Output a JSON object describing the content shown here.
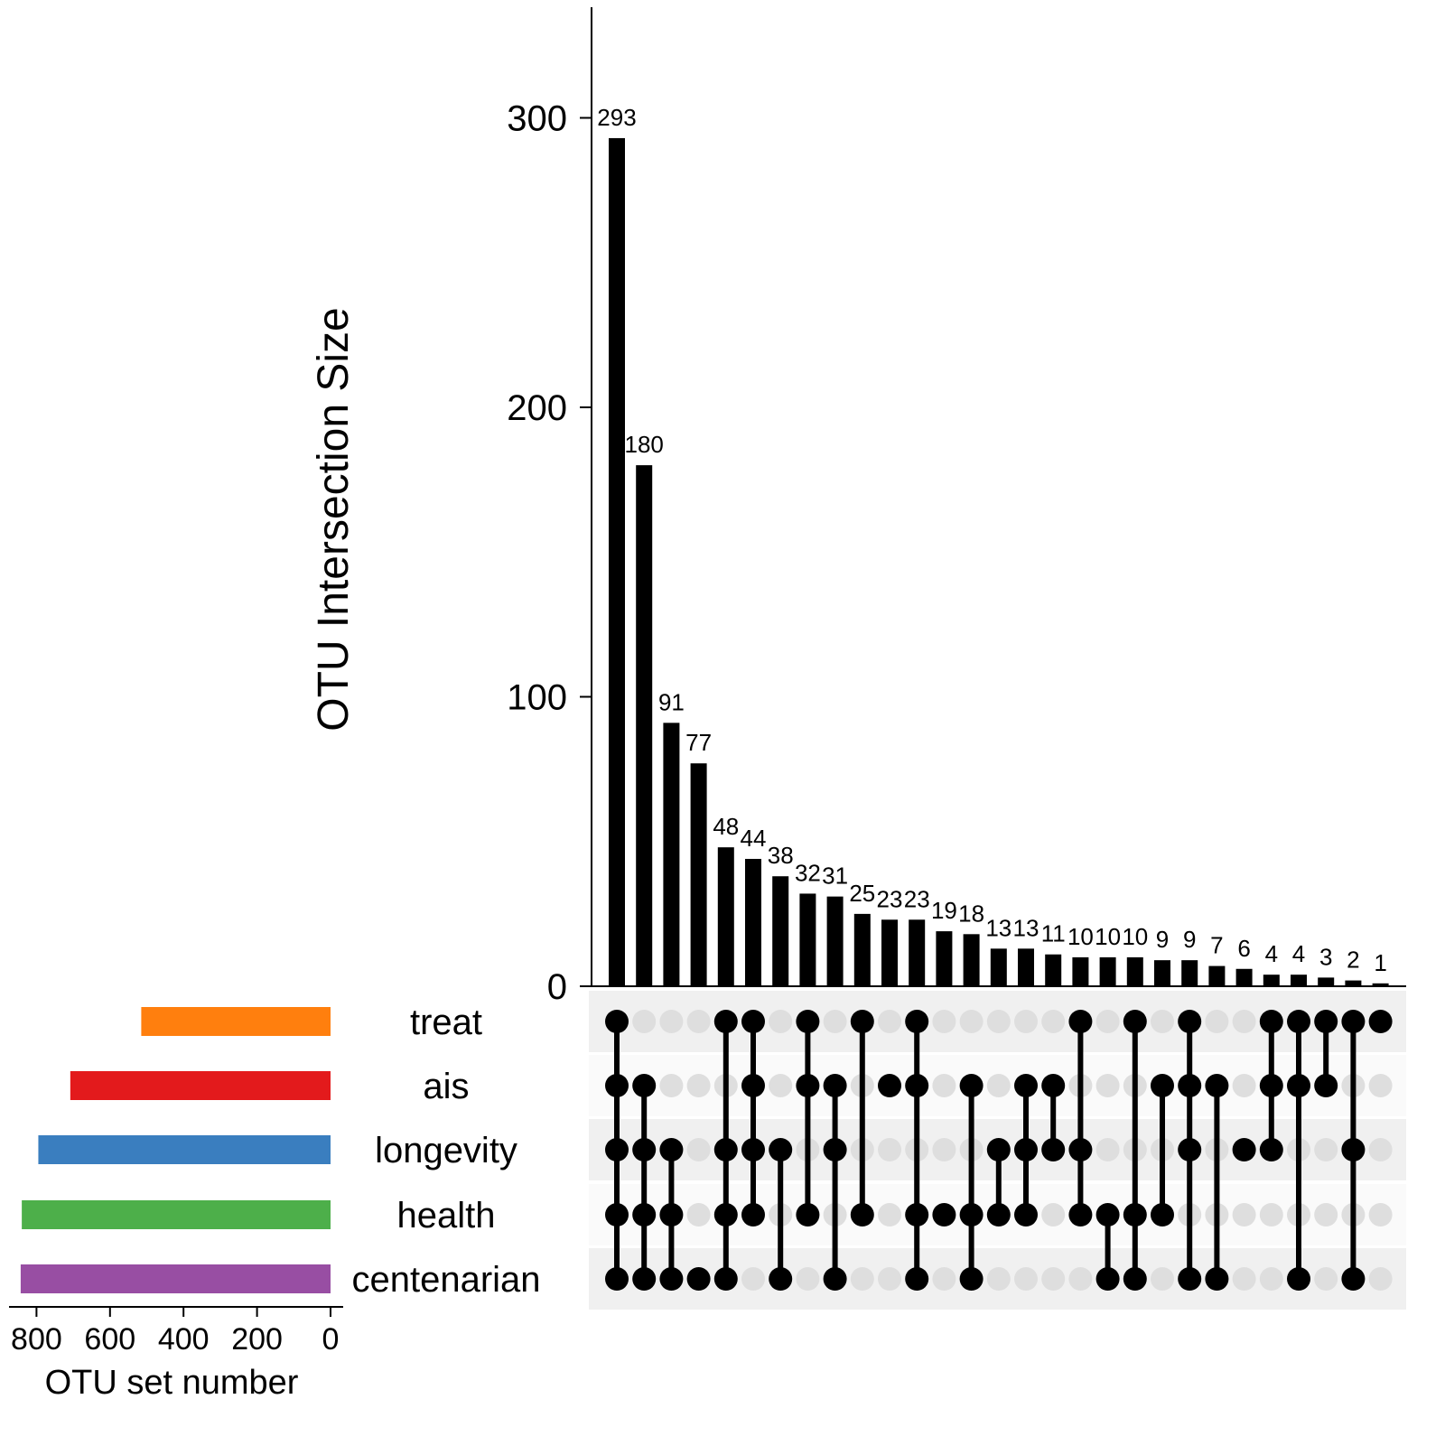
{
  "chart_data": {
    "type": "bar",
    "subtype": "upset",
    "ylabel": "OTU Intersection Size",
    "ylim": [
      0,
      330
    ],
    "yticks": [
      "0",
      "100",
      "200",
      "300"
    ],
    "intersections": [
      {
        "size": 293,
        "label": "293",
        "sets": [
          "treat",
          "ais",
          "longevity",
          "health",
          "centenarian"
        ]
      },
      {
        "size": 180,
        "label": "180",
        "sets": [
          "ais",
          "longevity",
          "health",
          "centenarian"
        ]
      },
      {
        "size": 91,
        "label": "91",
        "sets": [
          "longevity",
          "health",
          "centenarian"
        ]
      },
      {
        "size": 77,
        "label": "77",
        "sets": [
          "centenarian"
        ]
      },
      {
        "size": 48,
        "label": "48",
        "sets": [
          "treat",
          "longevity",
          "health",
          "centenarian"
        ]
      },
      {
        "size": 44,
        "label": "44",
        "sets": [
          "treat",
          "ais",
          "longevity",
          "health"
        ]
      },
      {
        "size": 38,
        "label": "38",
        "sets": [
          "longevity",
          "centenarian"
        ]
      },
      {
        "size": 32,
        "label": "32",
        "sets": [
          "treat",
          "ais",
          "health"
        ]
      },
      {
        "size": 31,
        "label": "31",
        "sets": [
          "ais",
          "longevity",
          "centenarian"
        ]
      },
      {
        "size": 25,
        "label": "25",
        "sets": [
          "treat",
          "health"
        ]
      },
      {
        "size": 23,
        "label": "23",
        "sets": [
          "ais"
        ]
      },
      {
        "size": 23,
        "label": "23",
        "sets": [
          "treat",
          "ais",
          "health",
          "centenarian"
        ]
      },
      {
        "size": 19,
        "label": "19",
        "sets": [
          "health"
        ]
      },
      {
        "size": 18,
        "label": "18",
        "sets": [
          "ais",
          "health",
          "centenarian"
        ]
      },
      {
        "size": 13,
        "label": "13",
        "sets": [
          "longevity",
          "health"
        ]
      },
      {
        "size": 13,
        "label": "13",
        "sets": [
          "ais",
          "longevity",
          "health"
        ]
      },
      {
        "size": 11,
        "label": "11",
        "sets": [
          "ais",
          "longevity"
        ]
      },
      {
        "size": 10,
        "label": "10",
        "sets": [
          "treat",
          "longevity",
          "health"
        ]
      },
      {
        "size": 10,
        "label": "10",
        "sets": [
          "health",
          "centenarian"
        ]
      },
      {
        "size": 10,
        "label": "10",
        "sets": [
          "treat",
          "health",
          "centenarian"
        ]
      },
      {
        "size": 9,
        "label": "9",
        "sets": [
          "ais",
          "health"
        ]
      },
      {
        "size": 9,
        "label": "9",
        "sets": [
          "treat",
          "ais",
          "longevity",
          "centenarian"
        ]
      },
      {
        "size": 7,
        "label": "7",
        "sets": [
          "ais",
          "centenarian"
        ]
      },
      {
        "size": 6,
        "label": "6",
        "sets": [
          "longevity"
        ]
      },
      {
        "size": 4,
        "label": "4",
        "sets": [
          "treat",
          "ais",
          "longevity"
        ]
      },
      {
        "size": 4,
        "label": "4",
        "sets": [
          "treat",
          "ais",
          "centenarian"
        ]
      },
      {
        "size": 3,
        "label": "3",
        "sets": [
          "treat",
          "ais"
        ]
      },
      {
        "size": 2,
        "label": "2",
        "sets": [
          "treat",
          "longevity",
          "centenarian"
        ]
      },
      {
        "size": 1,
        "label": "1",
        "sets": [
          "treat"
        ]
      }
    ],
    "sets": [
      {
        "name": "treat",
        "size": 515,
        "color": "#ff7f0e"
      },
      {
        "name": "ais",
        "size": 708,
        "color": "#e31a1c"
      },
      {
        "name": "longevity",
        "size": 795,
        "color": "#3a7ebf"
      },
      {
        "name": "health",
        "size": 840,
        "color": "#4daf4a"
      },
      {
        "name": "centenarian",
        "size": 843,
        "color": "#984ea3"
      }
    ],
    "set_xlabel": "OTU set number",
    "set_xlim": [
      0,
      850
    ],
    "set_xticks": [
      "800",
      "600",
      "400",
      "200",
      "0"
    ],
    "bar_color": "#000000",
    "dot_active_color": "#000000",
    "dot_inactive_color": "#dedede",
    "matrix_stripe_color": "#f0f0f0",
    "grid": false
  }
}
